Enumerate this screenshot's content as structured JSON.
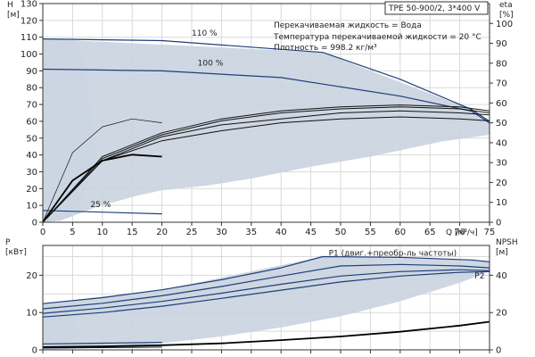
{
  "colors": {
    "band": "#c9d3df",
    "band_light": "#e4edf7",
    "pump_curve": "#1f3f7a",
    "efficiency_curve": "#111111",
    "npsh_curve": "#000000",
    "grid": "#d9d9d9",
    "axis": "#333333"
  },
  "header": {
    "pump_model": "TPE 50-900/2, 3*400 V",
    "liquid": "Перекачиваемая жидкость = Вода",
    "temperature": "Температура перекачиваемой жидкости = 20 °C",
    "density": "Плотность = 998.2 кг/м³"
  },
  "chart_data": [
    {
      "id": "head-efficiency",
      "type": "line",
      "xlabel": "Q [м³/ч]",
      "ylabel": "H\n[м]",
      "y2label": "eta\n[%]",
      "xlim": [
        0,
        75
      ],
      "ylim": [
        0,
        130
      ],
      "y2lim": [
        0,
        110
      ],
      "x_ticks": [
        "0",
        "5",
        "10",
        "15",
        "20",
        "25",
        "30",
        "35",
        "40",
        "45",
        "50",
        "55",
        "60",
        "65",
        "70",
        "75"
      ],
      "y_ticks": [
        "0",
        "10",
        "20",
        "30",
        "40",
        "50",
        "60",
        "70",
        "80",
        "90",
        "100",
        "110",
        "120",
        "130"
      ],
      "y2_ticks": [
        "0",
        "10",
        "20",
        "30",
        "40",
        "50",
        "60",
        "70",
        "80",
        "90",
        "100"
      ],
      "grid": true,
      "operating_area": {
        "upper": [
          [
            0,
            109
          ],
          [
            47,
            101
          ],
          [
            72,
            67
          ],
          [
            75,
            60
          ]
        ],
        "lower": [
          [
            75,
            52
          ],
          [
            67,
            48
          ],
          [
            55,
            39
          ],
          [
            45,
            33
          ],
          [
            35,
            26
          ],
          [
            28,
            22
          ],
          [
            20,
            19
          ],
          [
            16,
            16
          ],
          [
            12,
            12
          ],
          [
            9,
            9
          ],
          [
            6,
            5
          ],
          [
            3,
            1
          ],
          [
            0,
            0
          ]
        ]
      },
      "series": [
        {
          "name": "110 %",
          "axis": "left",
          "style": "pump",
          "x": [
            0,
            20,
            47,
            60,
            72,
            75
          ],
          "y": [
            109,
            108,
            101,
            85,
            67,
            60
          ]
        },
        {
          "name": "100 %",
          "axis": "left",
          "style": "pump",
          "x": [
            0,
            20,
            40,
            60,
            72,
            75
          ],
          "y": [
            91,
            90,
            86,
            75,
            66,
            59
          ]
        },
        {
          "name": "25 %",
          "axis": "left",
          "style": "pump",
          "x": [
            0,
            10,
            20
          ],
          "y": [
            7,
            6,
            5
          ]
        },
        {
          "axis": "right",
          "style": "eff",
          "x": [
            0,
            10,
            20,
            30,
            40,
            50,
            60,
            70,
            75
          ],
          "y": [
            0,
            31,
            41,
            46,
            50,
            52,
            53,
            52,
            51
          ]
        },
        {
          "axis": "right",
          "style": "eff",
          "x": [
            0,
            10,
            20,
            30,
            40,
            50,
            60,
            70,
            75
          ],
          "y": [
            0,
            31,
            43,
            49,
            52,
            55,
            56,
            55,
            54
          ]
        },
        {
          "axis": "right",
          "style": "eff",
          "x": [
            0,
            10,
            20,
            30,
            40,
            50,
            60,
            70,
            75
          ],
          "y": [
            0,
            32,
            44,
            51,
            55,
            57,
            58,
            57,
            55
          ]
        },
        {
          "axis": "right",
          "style": "eff",
          "x": [
            0,
            10,
            20,
            30,
            40,
            50,
            60,
            70,
            75
          ],
          "y": [
            0,
            33,
            45,
            52,
            56,
            58,
            59,
            58,
            56
          ]
        },
        {
          "axis": "right",
          "style": "eff-bold",
          "x": [
            0,
            5,
            10,
            15,
            20
          ],
          "y": [
            0,
            21,
            31,
            34,
            33
          ]
        },
        {
          "axis": "right",
          "style": "eff-thin",
          "x": [
            0,
            5,
            10,
            15,
            20
          ],
          "y": [
            0,
            35,
            48,
            52,
            50
          ]
        }
      ],
      "labels": [
        {
          "text": "110 %",
          "x": 25,
          "y": 111,
          "axis": "left"
        },
        {
          "text": "100 %",
          "x": 26,
          "y": 93,
          "axis": "left"
        },
        {
          "text": "25 %",
          "x": 8,
          "y": 9,
          "axis": "left"
        }
      ]
    },
    {
      "id": "power-npsh",
      "type": "line",
      "xlim": [
        0,
        75
      ],
      "ylim": [
        0,
        28
      ],
      "y2lim": [
        0,
        56
      ],
      "ylabel": "P\n[кВт]",
      "y2label": "NPSH\n[м]",
      "y_ticks": [
        "0",
        "10",
        "20"
      ],
      "y2_ticks": [
        "0",
        "20",
        "40"
      ],
      "grid": true,
      "operating_area": {
        "upper": [
          [
            0,
            12.4
          ],
          [
            20,
            16.1
          ],
          [
            47,
            25
          ],
          [
            72,
            24.1
          ],
          [
            75,
            23.6
          ]
        ],
        "lower": [
          [
            75,
            21
          ],
          [
            70,
            18
          ],
          [
            60,
            13
          ],
          [
            50,
            9
          ],
          [
            40,
            6
          ],
          [
            30,
            3.6
          ],
          [
            20,
            1.8
          ],
          [
            10,
            0.6
          ],
          [
            0,
            0
          ]
        ]
      },
      "series": [
        {
          "name": "P1 (двиг.+преобр-ль частоты)",
          "axis": "left",
          "style": "pump",
          "x": [
            0,
            10,
            20,
            30,
            40,
            47,
            60,
            72,
            75
          ],
          "y": [
            12.4,
            14,
            16.1,
            18.8,
            22,
            25,
            24.8,
            24.1,
            23.6
          ]
        },
        {
          "axis": "left",
          "style": "pump",
          "x": [
            0,
            10,
            20,
            30,
            40,
            50,
            60,
            70,
            75
          ],
          "y": [
            11,
            12.5,
            14.5,
            17,
            19.8,
            22.5,
            22.9,
            22.5,
            22
          ]
        },
        {
          "name": "P2",
          "axis": "left",
          "style": "pump",
          "x": [
            0,
            10,
            20,
            30,
            40,
            50,
            60,
            70,
            75
          ],
          "y": [
            9.8,
            11.2,
            13,
            15.2,
            17.6,
            19.8,
            21,
            21.5,
            21.2
          ]
        },
        {
          "axis": "left",
          "style": "pump",
          "x": [
            0,
            10,
            20,
            30,
            40,
            50,
            60,
            70,
            75
          ],
          "y": [
            8.8,
            10,
            11.7,
            13.8,
            16,
            18.2,
            19.8,
            20.8,
            21
          ]
        },
        {
          "axis": "left",
          "style": "pump",
          "x": [
            0,
            10,
            20
          ],
          "y": [
            1.6,
            1.8,
            2
          ]
        },
        {
          "axis": "right",
          "style": "eff-bold",
          "x": [
            0,
            10,
            20,
            30,
            40,
            50,
            60,
            70,
            75
          ],
          "y": [
            1.5,
            1.8,
            2.5,
            3.5,
            5.2,
            7.2,
            9.7,
            13,
            15.1
          ]
        },
        {
          "axis": "right",
          "style": "eff",
          "x": [
            0,
            10,
            20
          ],
          "y": [
            1,
            1.2,
            1.5
          ]
        }
      ],
      "labels": [
        {
          "text": "P1 (двиг.+преобр-ль частоты)",
          "x": 48,
          "y": 25.3,
          "axis": "left"
        },
        {
          "text": "P2",
          "x": 72.5,
          "y": 19.2,
          "axis": "left"
        }
      ]
    }
  ]
}
